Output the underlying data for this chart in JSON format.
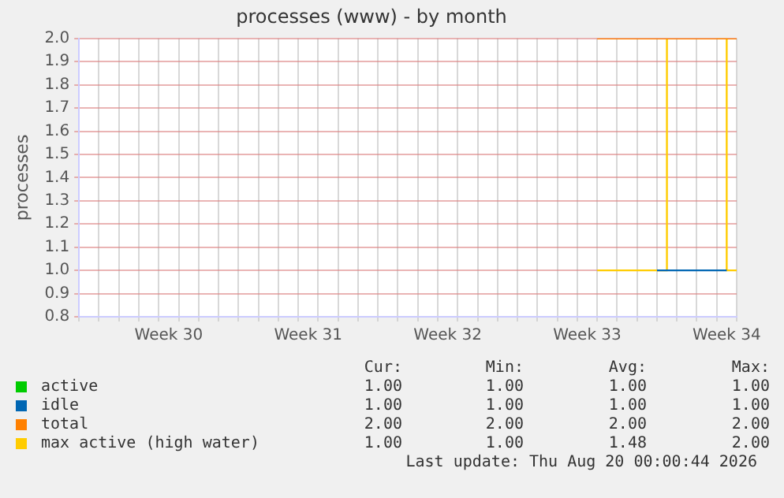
{
  "chart_data": {
    "type": "step",
    "title": "processes (www) - by month",
    "ylabel": "processes",
    "categories": [
      null,
      null,
      null,
      null,
      null,
      null,
      null,
      null,
      null,
      "Week 30",
      null,
      null,
      null,
      null,
      null,
      null,
      null,
      null,
      null,
      null,
      null,
      null,
      null,
      "Week 31",
      null,
      null,
      null,
      null,
      null,
      null,
      null,
      null,
      null,
      null,
      null,
      null,
      null,
      "Week 32",
      null,
      null,
      null,
      null,
      null,
      null,
      null,
      null,
      null,
      null,
      null,
      null,
      null,
      "Week 33",
      null,
      null,
      null,
      null,
      null,
      null,
      null,
      null,
      null,
      null,
      null,
      null,
      null,
      "Week 34",
      null
    ],
    "series": [
      {
        "name": "active",
        "color": "#00cc00",
        "values": [
          null,
          null,
          null,
          null,
          null,
          null,
          null,
          null,
          null,
          null,
          null,
          null,
          null,
          null,
          null,
          null,
          null,
          null,
          null,
          null,
          null,
          null,
          null,
          null,
          null,
          null,
          null,
          null,
          null,
          null,
          null,
          null,
          null,
          null,
          null,
          null,
          null,
          null,
          null,
          null,
          null,
          null,
          null,
          null,
          null,
          null,
          null,
          null,
          null,
          null,
          null,
          null,
          null,
          null,
          null,
          null,
          null,
          null,
          null,
          null,
          null,
          null,
          null,
          null,
          null,
          null,
          null
        ]
      },
      {
        "name": "idle",
        "color": "#0066b3",
        "values": [
          null,
          null,
          null,
          null,
          null,
          null,
          null,
          null,
          null,
          null,
          null,
          null,
          null,
          null,
          null,
          null,
          null,
          null,
          null,
          null,
          null,
          null,
          null,
          null,
          null,
          null,
          null,
          null,
          null,
          null,
          null,
          null,
          null,
          null,
          null,
          null,
          null,
          null,
          null,
          null,
          null,
          null,
          null,
          null,
          null,
          null,
          null,
          null,
          null,
          null,
          null,
          null,
          null,
          null,
          null,
          null,
          null,
          null,
          1,
          1,
          1,
          1,
          1,
          1,
          1,
          1,
          null
        ]
      },
      {
        "name": "total",
        "color": "#ff8000",
        "values": [
          null,
          null,
          null,
          null,
          null,
          null,
          null,
          null,
          null,
          null,
          null,
          null,
          null,
          null,
          null,
          null,
          null,
          null,
          null,
          null,
          null,
          null,
          null,
          null,
          null,
          null,
          null,
          null,
          null,
          null,
          null,
          null,
          null,
          null,
          null,
          null,
          null,
          null,
          null,
          null,
          null,
          null,
          null,
          null,
          null,
          null,
          null,
          null,
          null,
          null,
          null,
          null,
          2,
          2,
          2,
          2,
          2,
          2,
          2,
          2,
          2,
          2,
          2,
          2,
          2,
          2,
          2
        ]
      },
      {
        "name": "max active (high water)",
        "color": "#ffcc00",
        "values": [
          null,
          null,
          null,
          null,
          null,
          null,
          null,
          null,
          null,
          null,
          null,
          null,
          null,
          null,
          null,
          null,
          null,
          null,
          null,
          null,
          null,
          null,
          null,
          null,
          null,
          null,
          null,
          null,
          null,
          null,
          null,
          null,
          null,
          null,
          null,
          null,
          null,
          null,
          null,
          null,
          null,
          null,
          null,
          null,
          null,
          null,
          null,
          null,
          null,
          null,
          null,
          null,
          1,
          1,
          1,
          1,
          1,
          1,
          1,
          2,
          null,
          null,
          null,
          null,
          2,
          1,
          1
        ]
      }
    ],
    "ylim": [
      0.8,
      2.0
    ],
    "yticks": [
      {
        "value": 0.8,
        "label": "0.8"
      },
      {
        "value": 0.9,
        "label": "0.9"
      },
      {
        "value": 1,
        "label": "1.0"
      },
      {
        "value": 1.1,
        "label": "1.1"
      },
      {
        "value": 1.2,
        "label": "1.2"
      },
      {
        "value": 1.3,
        "label": "1.3"
      },
      {
        "value": 1.4,
        "label": "1.4"
      },
      {
        "value": 1.5,
        "label": "1.5"
      },
      {
        "value": 1.6,
        "label": "1.6"
      },
      {
        "value": 1.7,
        "label": "1.7"
      },
      {
        "value": 1.8,
        "label": "1.8"
      },
      {
        "value": 1.9,
        "label": "1.9"
      },
      {
        "value": 2,
        "label": "2.0"
      }
    ],
    "grid": true,
    "legend": "bottom",
    "marker": "none",
    "line_style": "solid",
    "annotations": [
      "Cur:",
      "Min:",
      "Avg:",
      "Max:",
      "1.00",
      "1.00",
      "1.00",
      "1.00",
      "1.00",
      "1.00",
      "1.00",
      "1.00",
      "2.00",
      "2.00",
      "2.00",
      "2.00",
      "1.00",
      "1.00",
      "1.48",
      "2.00",
      "Last update: Thu Aug 20 00:00:44 2026"
    ]
  }
}
